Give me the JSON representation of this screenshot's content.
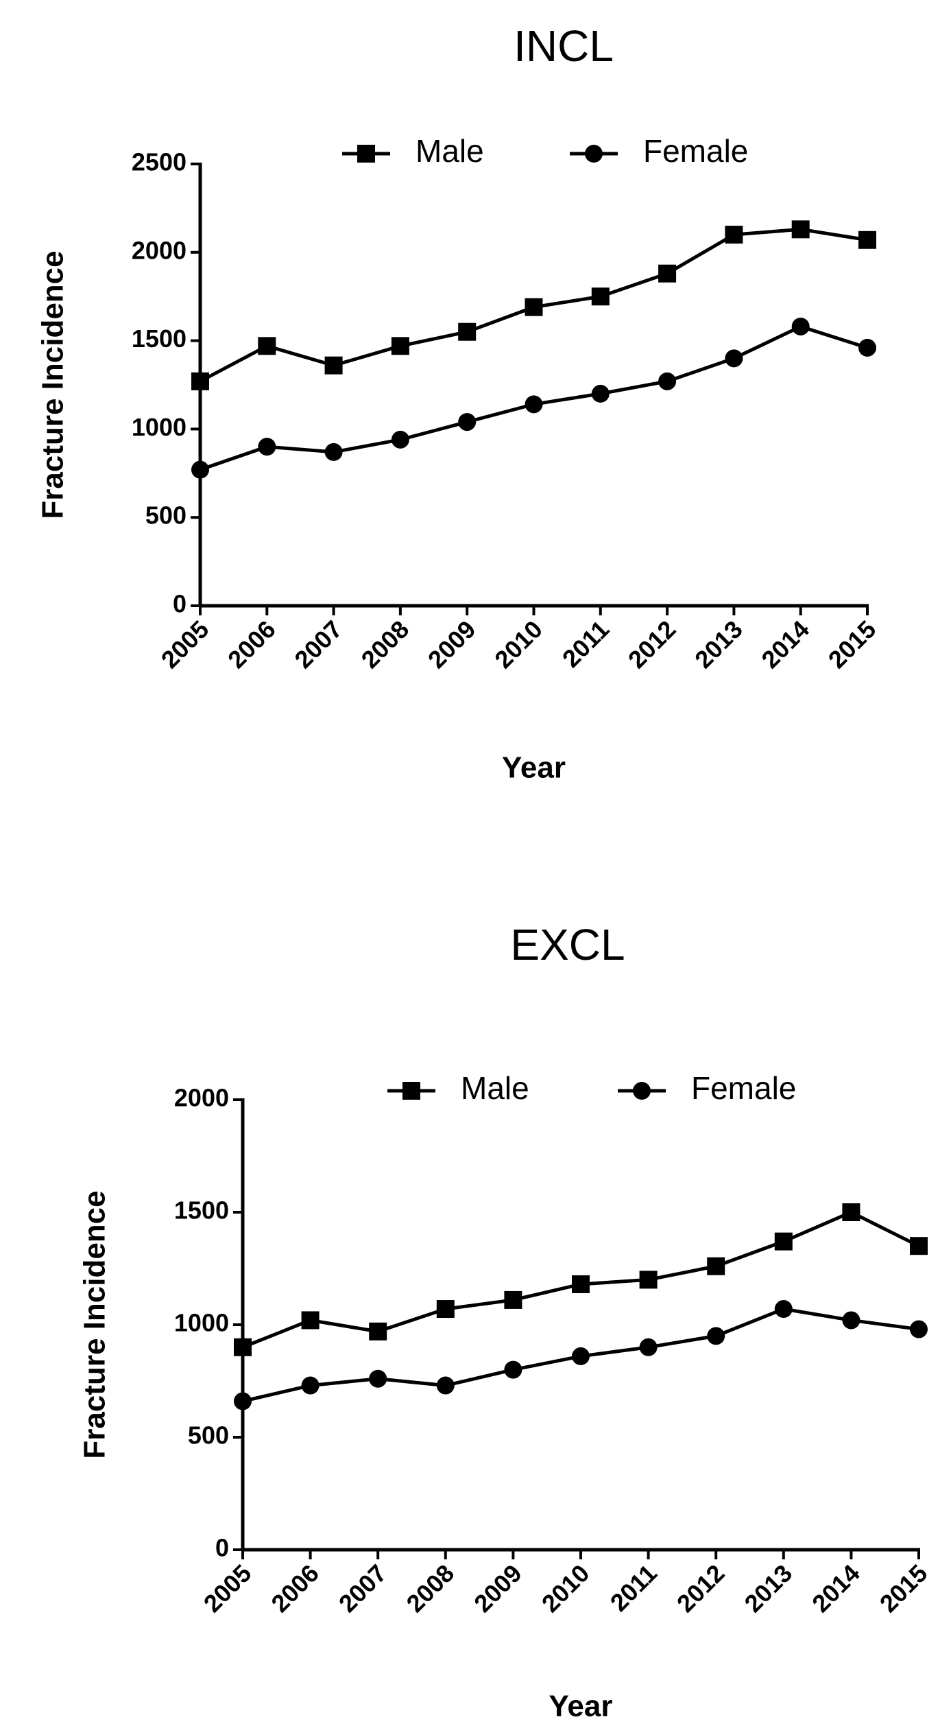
{
  "chart_data": [
    {
      "type": "line",
      "title": "INCL",
      "x_label": "Year",
      "y_label": "Fracture Incidence",
      "x": [
        2005,
        2006,
        2007,
        2008,
        2009,
        2010,
        2011,
        2012,
        2013,
        2014,
        2015
      ],
      "xlim": [
        2005,
        2015
      ],
      "xticks": [
        2005,
        2006,
        2007,
        2008,
        2009,
        2010,
        2011,
        2012,
        2013,
        2014,
        2015
      ],
      "ylim": [
        0,
        2500
      ],
      "yticks": [
        0,
        500,
        1000,
        1500,
        2000,
        2500
      ],
      "legend": "top",
      "series": [
        {
          "name": "Male",
          "color": "#000000",
          "marker": "square",
          "values": [
            1270,
            1470,
            1360,
            1470,
            1550,
            1690,
            1750,
            1880,
            2100,
            2130,
            2070
          ]
        },
        {
          "name": "Female",
          "color": "#000000",
          "marker": "circle",
          "values": [
            770,
            900,
            870,
            940,
            1040,
            1140,
            1200,
            1270,
            1400,
            1580,
            1460
          ]
        }
      ]
    },
    {
      "type": "line",
      "title": "EXCL",
      "x_label": "Year",
      "y_label": "Fracture Incidence",
      "x": [
        2005,
        2006,
        2007,
        2008,
        2009,
        2010,
        2011,
        2012,
        2013,
        2014,
        2015
      ],
      "xlim": [
        2005,
        2015
      ],
      "xticks": [
        2005,
        2006,
        2007,
        2008,
        2009,
        2010,
        2011,
        2012,
        2013,
        2014,
        2015
      ],
      "ylim": [
        0,
        2000
      ],
      "yticks": [
        0,
        500,
        1000,
        1500,
        2000
      ],
      "legend": "top",
      "series": [
        {
          "name": "Male",
          "color": "#000000",
          "marker": "square",
          "values": [
            900,
            1020,
            970,
            1070,
            1110,
            1180,
            1200,
            1260,
            1370,
            1500,
            1350
          ]
        },
        {
          "name": "Female",
          "color": "#000000",
          "marker": "circle",
          "values": [
            660,
            730,
            760,
            730,
            800,
            860,
            900,
            950,
            1070,
            1020,
            980
          ]
        }
      ]
    }
  ]
}
